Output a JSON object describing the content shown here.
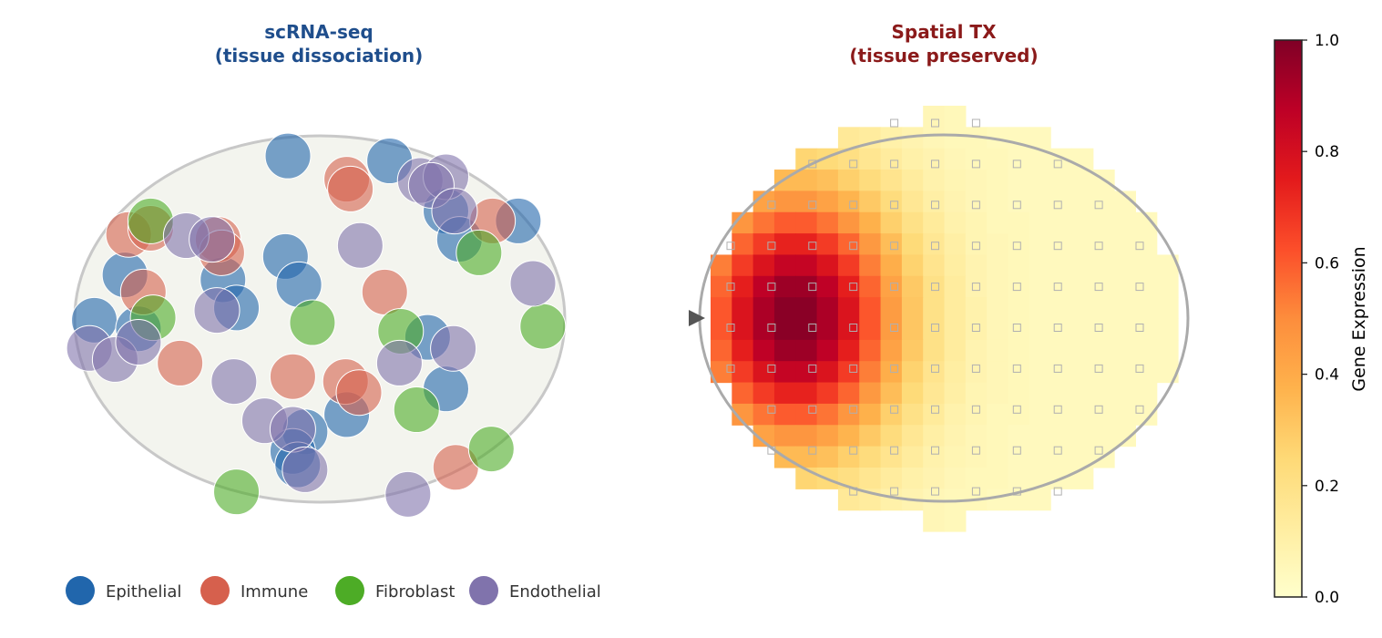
{
  "left_panel": {
    "title_line1": "scRNA-seq",
    "title_line2": "(tissue dissociation)",
    "title_color": "#1f4e8c"
  },
  "right_panel": {
    "title_line1": "Spatial TX",
    "title_line2": "(tissue preserved)",
    "title_color": "#8b1a1a"
  },
  "legend": {
    "placement": "bottom",
    "items": [
      {
        "label": "Epithelial",
        "color": "#2166ac"
      },
      {
        "label": "Immune",
        "color": "#d6604d"
      },
      {
        "label": "Fibroblast",
        "color": "#4dac26"
      },
      {
        "label": "Endothelial",
        "color": "#8073ac"
      }
    ]
  },
  "colorbar": {
    "label": "Gene Expression",
    "colormap": "YlOrRd",
    "range": [
      0.0,
      1.0
    ],
    "ticks": [
      "0.0",
      "0.2",
      "0.4",
      "0.6",
      "0.8",
      "1.0"
    ],
    "stops": [
      "#ffffcc",
      "#ffeda0",
      "#fed976",
      "#feb24c",
      "#fd8d3c",
      "#fc4e2a",
      "#e31a1c",
      "#bd0026",
      "#800026"
    ]
  },
  "arrow_icon": "arrow-right-icon",
  "chart_data": [
    {
      "type": "scatter",
      "title": "scRNA-seq (tissue dissociation)",
      "grid": false,
      "series": [
        {
          "name": "Epithelial",
          "points": [
            [
              -0.26,
              1.33
            ],
            [
              0.57,
              1.29
            ],
            [
              1.03,
              0.88
            ],
            [
              1.14,
              0.65
            ],
            [
              1.62,
              0.8
            ],
            [
              -0.28,
              0.51
            ],
            [
              -1.59,
              0.36
            ],
            [
              -0.79,
              0.32
            ],
            [
              -0.17,
              0.28
            ],
            [
              -0.68,
              0.09
            ],
            [
              -1.84,
              -0.01
            ],
            [
              -1.48,
              -0.08
            ],
            [
              0.88,
              -0.15
            ],
            [
              1.03,
              -0.57
            ],
            [
              0.22,
              -0.78
            ],
            [
              -0.12,
              -0.92
            ],
            [
              -0.22,
              -1.08
            ],
            [
              -0.18,
              -1.19
            ]
          ]
        },
        {
          "name": "Immune",
          "points": [
            [
              0.22,
              1.14
            ],
            [
              0.25,
              1.06
            ],
            [
              -1.56,
              0.69
            ],
            [
              -1.38,
              0.74
            ],
            [
              -0.83,
              0.65
            ],
            [
              -0.8,
              0.54
            ],
            [
              -1.44,
              0.22
            ],
            [
              1.41,
              0.8
            ],
            [
              0.53,
              0.22
            ],
            [
              -1.14,
              -0.36
            ],
            [
              -0.22,
              -0.47
            ],
            [
              0.21,
              -0.51
            ],
            [
              0.32,
              -0.6
            ],
            [
              1.11,
              -1.21
            ]
          ]
        },
        {
          "name": "Fibroblast",
          "points": [
            [
              -1.38,
              0.8
            ],
            [
              1.3,
              0.54
            ],
            [
              -1.36,
              0.01
            ],
            [
              -0.06,
              -0.03
            ],
            [
              0.66,
              -0.1
            ],
            [
              1.82,
              -0.06
            ],
            [
              0.79,
              -0.74
            ],
            [
              1.4,
              -1.06
            ],
            [
              -0.68,
              -1.41
            ]
          ]
        },
        {
          "name": "Endothelial",
          "points": [
            [
              -1.09,
              0.68
            ],
            [
              -0.88,
              0.65
            ],
            [
              0.82,
              1.13
            ],
            [
              1.03,
              1.16
            ],
            [
              0.91,
              1.09
            ],
            [
              1.1,
              0.88
            ],
            [
              0.33,
              0.6
            ],
            [
              1.74,
              0.29
            ],
            [
              -0.84,
              0.07
            ],
            [
              -1.88,
              -0.24
            ],
            [
              -1.67,
              -0.33
            ],
            [
              -1.48,
              -0.19
            ],
            [
              1.09,
              -0.24
            ],
            [
              0.65,
              -0.36
            ],
            [
              -0.7,
              -0.51
            ],
            [
              -0.45,
              -0.83
            ],
            [
              -0.22,
              -0.9
            ],
            [
              -0.12,
              -1.23
            ],
            [
              0.72,
              -1.43
            ]
          ]
        }
      ]
    },
    {
      "type": "heatmap",
      "title": "Spatial TX (tissue preserved)",
      "colorbar_label": "Gene Expression",
      "vmin": 0.0,
      "vmax": 1.0,
      "values": [
        [
          null,
          null,
          null,
          null,
          null,
          null,
          null,
          null,
          null,
          null,
          0.06,
          0.05,
          null,
          null,
          null,
          null,
          null,
          null,
          null,
          null,
          null,
          null
        ],
        [
          null,
          null,
          null,
          null,
          null,
          null,
          0.15,
          0.13,
          0.1,
          0.08,
          0.06,
          0.05,
          0.05,
          0.04,
          0.04,
          0.04,
          null,
          null,
          null,
          null,
          null,
          null
        ],
        [
          null,
          null,
          null,
          null,
          0.26,
          0.24,
          0.21,
          0.17,
          0.13,
          0.1,
          0.08,
          0.06,
          0.05,
          0.05,
          0.04,
          0.04,
          0.04,
          0.04,
          null,
          null,
          null,
          null
        ],
        [
          null,
          null,
          null,
          0.35,
          0.35,
          0.33,
          0.28,
          0.23,
          0.18,
          0.13,
          0.09,
          0.07,
          0.06,
          0.05,
          0.04,
          0.04,
          0.04,
          0.04,
          0.04,
          null,
          null,
          null
        ],
        [
          null,
          null,
          0.43,
          0.47,
          0.47,
          0.43,
          0.37,
          0.3,
          0.23,
          0.16,
          0.11,
          0.08,
          0.06,
          0.05,
          0.04,
          0.04,
          0.04,
          0.04,
          0.04,
          0.04,
          null,
          null
        ],
        [
          null,
          0.47,
          0.55,
          0.6,
          0.6,
          0.55,
          0.47,
          0.38,
          0.28,
          0.2,
          0.14,
          0.09,
          0.07,
          0.05,
          0.05,
          0.04,
          0.04,
          0.04,
          0.04,
          0.04,
          0.04,
          null
        ],
        [
          null,
          0.58,
          0.67,
          0.73,
          0.73,
          0.67,
          0.58,
          0.46,
          0.34,
          0.24,
          0.16,
          0.11,
          0.07,
          0.06,
          0.05,
          0.04,
          0.04,
          0.04,
          0.04,
          0.04,
          0.04,
          null
        ],
        [
          0.53,
          0.67,
          0.78,
          0.85,
          0.85,
          0.78,
          0.67,
          0.53,
          0.39,
          0.27,
          0.18,
          0.12,
          0.08,
          0.06,
          0.05,
          0.04,
          0.04,
          0.04,
          0.04,
          0.04,
          0.04,
          0.04
        ],
        [
          0.58,
          0.74,
          0.87,
          0.94,
          0.94,
          0.87,
          0.74,
          0.58,
          0.43,
          0.3,
          0.2,
          0.13,
          0.08,
          0.06,
          0.05,
          0.04,
          0.04,
          0.04,
          0.04,
          0.04,
          0.04,
          0.04
        ],
        [
          0.61,
          0.78,
          0.91,
          0.98,
          0.98,
          0.91,
          0.78,
          0.61,
          0.45,
          0.31,
          0.2,
          0.13,
          0.09,
          0.06,
          0.05,
          0.04,
          0.04,
          0.04,
          0.04,
          0.04,
          0.04,
          0.04
        ],
        [
          0.61,
          0.78,
          0.91,
          0.98,
          0.98,
          0.91,
          0.78,
          0.61,
          0.45,
          0.31,
          0.2,
          0.13,
          0.09,
          0.06,
          0.05,
          0.04,
          0.04,
          0.04,
          0.04,
          0.04,
          0.04,
          0.04
        ],
        [
          0.58,
          0.74,
          0.87,
          0.94,
          0.94,
          0.87,
          0.74,
          0.58,
          0.43,
          0.3,
          0.2,
          0.13,
          0.08,
          0.06,
          0.05,
          0.04,
          0.04,
          0.04,
          0.04,
          0.04,
          0.04,
          0.04
        ],
        [
          0.53,
          0.67,
          0.78,
          0.85,
          0.85,
          0.78,
          0.67,
          0.53,
          0.39,
          0.27,
          0.18,
          0.12,
          0.08,
          0.06,
          0.05,
          0.04,
          0.04,
          0.04,
          0.04,
          0.04,
          0.04,
          0.04
        ],
        [
          null,
          0.58,
          0.67,
          0.73,
          0.73,
          0.67,
          0.58,
          0.46,
          0.34,
          0.24,
          0.16,
          0.11,
          0.07,
          0.06,
          0.05,
          0.04,
          0.04,
          0.04,
          0.04,
          0.04,
          0.04,
          null
        ],
        [
          null,
          0.47,
          0.55,
          0.6,
          0.6,
          0.55,
          0.47,
          0.38,
          0.28,
          0.2,
          0.14,
          0.09,
          0.07,
          0.05,
          0.05,
          0.04,
          0.04,
          0.04,
          0.04,
          0.04,
          0.04,
          null
        ],
        [
          null,
          null,
          0.43,
          0.47,
          0.47,
          0.43,
          0.37,
          0.3,
          0.23,
          0.16,
          0.11,
          0.08,
          0.06,
          0.05,
          0.04,
          0.04,
          0.04,
          0.04,
          0.04,
          0.04,
          null,
          null
        ],
        [
          null,
          null,
          null,
          0.35,
          0.35,
          0.33,
          0.28,
          0.23,
          0.18,
          0.13,
          0.09,
          0.07,
          0.06,
          0.05,
          0.04,
          0.04,
          0.04,
          0.04,
          0.04,
          null,
          null,
          null
        ],
        [
          null,
          null,
          null,
          null,
          0.26,
          0.24,
          0.21,
          0.17,
          0.13,
          0.1,
          0.08,
          0.06,
          0.05,
          0.05,
          0.04,
          0.04,
          0.04,
          0.04,
          null,
          null,
          null,
          null
        ],
        [
          null,
          null,
          null,
          null,
          null,
          null,
          0.15,
          0.13,
          0.1,
          0.08,
          0.06,
          0.05,
          0.05,
          0.04,
          0.04,
          0.04,
          null,
          null,
          null,
          null,
          null,
          null
        ],
        [
          null,
          null,
          null,
          null,
          null,
          null,
          null,
          null,
          null,
          null,
          0.06,
          0.05,
          null,
          null,
          null,
          null,
          null,
          null,
          null,
          null,
          null,
          null
        ]
      ],
      "spot_rows": [
        [
          4,
          6
        ],
        [
          2,
          8
        ],
        [
          1,
          9
        ],
        [
          0,
          10
        ],
        [
          0,
          10
        ],
        [
          0,
          10
        ],
        [
          0,
          10
        ],
        [
          1,
          10
        ],
        [
          1,
          9
        ],
        [
          3,
          8
        ]
      ]
    }
  ]
}
